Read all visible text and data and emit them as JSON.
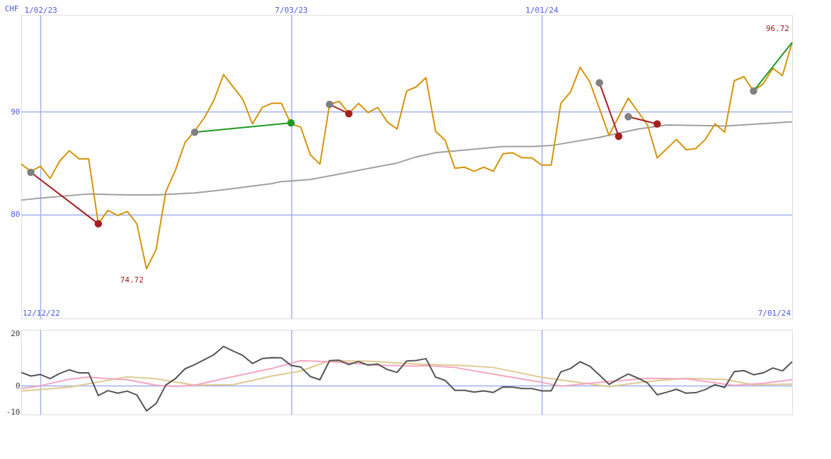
{
  "chart_data": [
    {
      "type": "line",
      "ylabel": "CHF",
      "grid": true,
      "xlim": [
        "2022-12-19",
        "2024-07-01"
      ],
      "xticks": [
        {
          "value": "2023-01-02",
          "label": "1/02/23"
        },
        {
          "value": "2023-07-03",
          "label": "7/03/23"
        },
        {
          "value": "2024-01-01",
          "label": "1/01/24"
        }
      ],
      "ylim": [
        69.9,
        99.4
      ],
      "yticks": [
        80,
        90
      ],
      "x": [
        "2022-12-19",
        "2022-12-26",
        "2023-01-02",
        "2023-01-09",
        "2023-01-16",
        "2023-01-23",
        "2023-01-30",
        "2023-02-06",
        "2023-02-13",
        "2023-02-20",
        "2023-02-27",
        "2023-03-06",
        "2023-03-13",
        "2023-03-20",
        "2023-03-27",
        "2023-04-03",
        "2023-04-10",
        "2023-04-17",
        "2023-04-24",
        "2023-05-01",
        "2023-05-08",
        "2023-05-15",
        "2023-05-22",
        "2023-05-29",
        "2023-06-05",
        "2023-06-12",
        "2023-06-19",
        "2023-06-26",
        "2023-07-03",
        "2023-07-10",
        "2023-07-17",
        "2023-07-24",
        "2023-07-31",
        "2023-08-07",
        "2023-08-14",
        "2023-08-21",
        "2023-08-28",
        "2023-09-04",
        "2023-09-11",
        "2023-09-18",
        "2023-09-25",
        "2023-10-02",
        "2023-10-09",
        "2023-10-16",
        "2023-10-23",
        "2023-10-30",
        "2023-11-06",
        "2023-11-13",
        "2023-11-20",
        "2023-11-27",
        "2023-12-04",
        "2023-12-11",
        "2023-12-18",
        "2023-12-25",
        "2024-01-01",
        "2024-01-08",
        "2024-01-15",
        "2024-01-22",
        "2024-01-29",
        "2024-02-05",
        "2024-02-12",
        "2024-02-19",
        "2024-02-26",
        "2024-03-04",
        "2024-03-11",
        "2024-03-18",
        "2024-03-25",
        "2024-04-01",
        "2024-04-08",
        "2024-04-15",
        "2024-04-22",
        "2024-04-29",
        "2024-05-06",
        "2024-05-13",
        "2024-05-20",
        "2024-05-27",
        "2024-06-03",
        "2024-06-10",
        "2024-06-17",
        "2024-06-24",
        "2024-07-01"
      ],
      "series": [
        {
          "color": "#a0a0a0",
          "x": [
            "2022-12-19",
            "2023-01-02",
            "2023-02-06",
            "2023-03-06",
            "2023-03-27",
            "2023-04-24",
            "2023-05-15",
            "2023-06-19",
            "2023-06-26",
            "2023-07-17",
            "2023-09-18",
            "2023-10-02",
            "2023-10-16",
            "2023-12-04",
            "2023-12-25",
            "2024-01-08",
            "2024-02-12",
            "2024-03-11",
            "2024-04-01",
            "2024-05-13",
            "2024-07-01"
          ],
          "values": [
            81.4,
            81.6,
            82.0,
            81.9,
            81.9,
            82.1,
            82.4,
            83.0,
            83.2,
            83.4,
            85.0,
            85.6,
            86.0,
            86.6,
            86.6,
            86.7,
            87.5,
            88.3,
            88.7,
            88.6,
            89.0
          ]
        },
        {
          "color": "#d4940a",
          "values": [
            84.9,
            84.2,
            84.7,
            83.5,
            85.2,
            86.2,
            85.4,
            85.4,
            79.1,
            80.4,
            79.9,
            80.3,
            79.1,
            74.72,
            76.6,
            82.2,
            84.3,
            87.0,
            88.1,
            89.4,
            91.1,
            93.6,
            92.4,
            91.2,
            88.8,
            90.4,
            90.8,
            90.8,
            88.8,
            88.5,
            85.8,
            84.9,
            90.7,
            91.0,
            89.8,
            90.8,
            89.9,
            90.4,
            89.0,
            88.3,
            92.0,
            92.4,
            93.3,
            88.1,
            87.2,
            84.5,
            84.6,
            84.2,
            84.6,
            84.2,
            85.9,
            86.0,
            85.5,
            85.5,
            84.8,
            84.8,
            90.8,
            91.9,
            94.3,
            92.9,
            90.3,
            87.7,
            89.5,
            91.3,
            90.0,
            88.7,
            85.5,
            86.4,
            87.3,
            86.3,
            86.4,
            87.3,
            88.8,
            88.0,
            93.0,
            93.4,
            92.0,
            92.7,
            94.2,
            93.5,
            96.72
          ]
        },
        {
          "color": "#a52020",
          "x": [
            "2022-12-26",
            "2023-02-13"
          ],
          "values": [
            84.1,
            79.1
          ]
        },
        {
          "color": "#229922",
          "x": [
            "2023-04-24",
            "2023-07-03"
          ],
          "values": [
            88.0,
            88.9
          ]
        },
        {
          "color": "#a52020",
          "x": [
            "2023-07-31",
            "2023-08-14"
          ],
          "values": [
            90.7,
            89.8
          ]
        },
        {
          "color": "#a52020",
          "x": [
            "2024-02-12",
            "2024-02-26"
          ],
          "values": [
            92.8,
            87.6
          ]
        },
        {
          "color": "#a52020",
          "x": [
            "2024-03-04",
            "2024-03-25"
          ],
          "values": [
            89.5,
            88.8
          ]
        },
        {
          "color": "#229922",
          "x": [
            "2024-06-03",
            "2024-07-01"
          ],
          "values": [
            92.0,
            96.72
          ]
        },
        {
          "type": "scatter",
          "x": [
            "2022-12-26",
            "2023-02-13",
            "2023-04-24",
            "2023-07-03",
            "2023-07-31",
            "2023-08-14",
            "2024-02-12",
            "2024-02-26",
            "2024-03-04",
            "2024-03-25",
            "2024-06-03"
          ],
          "values": [
            84.1,
            79.1,
            88.0,
            88.9,
            90.7,
            89.8,
            92.8,
            87.6,
            89.5,
            88.8,
            92.0
          ],
          "colors": [
            "#808080",
            "#a52020",
            "#808080",
            "#229922",
            "#808080",
            "#a52020",
            "#808080",
            "#a52020",
            "#808080",
            "#a52020",
            "#808080"
          ]
        }
      ],
      "annotations": [
        "12/12/22",
        "7/01/24",
        {
          "text": "74.72",
          "x": "2023-03-20",
          "y": 74.72
        },
        {
          "text": "96.72",
          "x": "2024-07-01",
          "y": 96.72
        }
      ]
    },
    {
      "type": "line",
      "grid": "x",
      "tick_labels": "y",
      "xlim": [
        "2022-12-19",
        "2024-07-01"
      ],
      "xticks": [
        {
          "value": "2023-01-02",
          "label": null
        },
        {
          "value": "2023-07-03",
          "label": null
        },
        {
          "value": "2024-01-01",
          "label": null
        }
      ],
      "ylim": [
        -11,
        21.6
      ],
      "yticks": [
        -10,
        0,
        20
      ],
      "ref_lines": [
        {
          "axis": "y",
          "value": 0,
          "color": "#a0b0f0"
        }
      ],
      "x": [
        "2022-12-19",
        "2022-12-26",
        "2023-01-02",
        "2023-01-09",
        "2023-01-16",
        "2023-01-23",
        "2023-01-30",
        "2023-02-06",
        "2023-02-13",
        "2023-02-20",
        "2023-02-27",
        "2023-03-06",
        "2023-03-13",
        "2023-03-20",
        "2023-03-27",
        "2023-04-03",
        "2023-04-10",
        "2023-04-17",
        "2023-04-24",
        "2023-05-01",
        "2023-05-08",
        "2023-05-15",
        "2023-05-22",
        "2023-05-29",
        "2023-06-05",
        "2023-06-12",
        "2023-06-19",
        "2023-06-26",
        "2023-07-03",
        "2023-07-10",
        "2023-07-17",
        "2023-07-24",
        "2023-07-31",
        "2023-08-07",
        "2023-08-14",
        "2023-08-21",
        "2023-08-28",
        "2023-09-04",
        "2023-09-11",
        "2023-09-18",
        "2023-09-25",
        "2023-10-02",
        "2023-10-09",
        "2023-10-16",
        "2023-10-23",
        "2023-10-30",
        "2023-11-06",
        "2023-11-13",
        "2023-11-20",
        "2023-11-27",
        "2023-12-04",
        "2023-12-11",
        "2023-12-18",
        "2023-12-25",
        "2024-01-01",
        "2024-01-08",
        "2024-01-15",
        "2024-01-22",
        "2024-01-29",
        "2024-02-05",
        "2024-02-12",
        "2024-02-19",
        "2024-02-26",
        "2024-03-04",
        "2024-03-11",
        "2024-03-18",
        "2024-03-25",
        "2024-04-01",
        "2024-04-08",
        "2024-04-15",
        "2024-04-22",
        "2024-04-29",
        "2024-05-06",
        "2024-05-13",
        "2024-05-20",
        "2024-05-27",
        "2024-06-03",
        "2024-06-10",
        "2024-06-17",
        "2024-06-24",
        "2024-07-01"
      ],
      "series": [
        {
          "color": "#e0c890",
          "x": [
            "2022-12-19",
            "2023-01-23",
            "2023-03-06",
            "2023-03-27",
            "2023-04-24",
            "2023-05-22",
            "2023-06-19",
            "2023-07-10",
            "2023-07-31",
            "2023-08-28",
            "2023-10-02",
            "2023-11-06",
            "2023-11-27",
            "2024-01-01",
            "2024-02-19",
            "2024-03-18",
            "2024-04-15",
            "2024-05-13",
            "2024-06-03",
            "2024-07-01"
          ],
          "values": [
            -2.0,
            -0.5,
            3.5,
            2.8,
            0.3,
            0.5,
            3.8,
            5.7,
            9.7,
            9.5,
            8.4,
            7.8,
            7.1,
            3.3,
            -0.3,
            1.7,
            2.9,
            2.5,
            0.4,
            0.7
          ]
        },
        {
          "color": "#f4a6c0",
          "x": [
            "2022-12-19",
            "2023-01-02",
            "2023-01-23",
            "2023-02-06",
            "2023-02-20",
            "2023-03-06",
            "2023-03-27",
            "2023-04-10",
            "2023-04-24",
            "2023-05-15",
            "2023-06-19",
            "2023-07-10",
            "2023-07-31",
            "2023-08-14",
            "2023-09-04",
            "2023-10-02",
            "2023-10-09",
            "2023-10-30",
            "2023-12-04",
            "2024-01-01",
            "2024-01-15",
            "2024-02-19",
            "2024-03-18",
            "2024-04-15",
            "2024-05-20",
            "2024-06-10",
            "2024-07-01"
          ],
          "values": [
            -1.0,
            0.1,
            2.6,
            3.4,
            2.8,
            2.4,
            0.3,
            -0.2,
            0.3,
            2.8,
            6.7,
            9.7,
            9.3,
            8.8,
            8.0,
            7.6,
            7.8,
            7.1,
            3.9,
            1.4,
            -0.1,
            1.7,
            2.9,
            2.7,
            0.2,
            1.0,
            2.4
          ]
        },
        {
          "color": "#555555",
          "values": [
            5.2,
            3.8,
            4.4,
            2.8,
            4.8,
            6.2,
            5.0,
            5.0,
            -3.7,
            -1.8,
            -2.8,
            -2.0,
            -3.5,
            -9.6,
            -6.8,
            0.3,
            2.8,
            6.6,
            8.2,
            10.1,
            12.0,
            15.2,
            13.4,
            11.7,
            8.6,
            10.5,
            10.9,
            10.8,
            7.9,
            7.3,
            3.6,
            2.4,
            9.7,
            9.9,
            8.2,
            9.4,
            8.0,
            8.4,
            6.3,
            5.2,
            9.6,
            9.8,
            10.5,
            3.4,
            2.1,
            -1.7,
            -1.7,
            -2.4,
            -1.9,
            -2.5,
            -0.4,
            -0.5,
            -1.0,
            -1.0,
            -1.9,
            -1.9,
            5.4,
            6.7,
            9.3,
            7.6,
            4.2,
            0.6,
            2.7,
            4.6,
            3.0,
            1.1,
            -3.4,
            -2.4,
            -1.3,
            -2.8,
            -2.6,
            -1.4,
            0.5,
            -0.6,
            5.5,
            5.9,
            4.3,
            5.0,
            6.9,
            5.8,
            9.3
          ]
        }
      ]
    }
  ]
}
